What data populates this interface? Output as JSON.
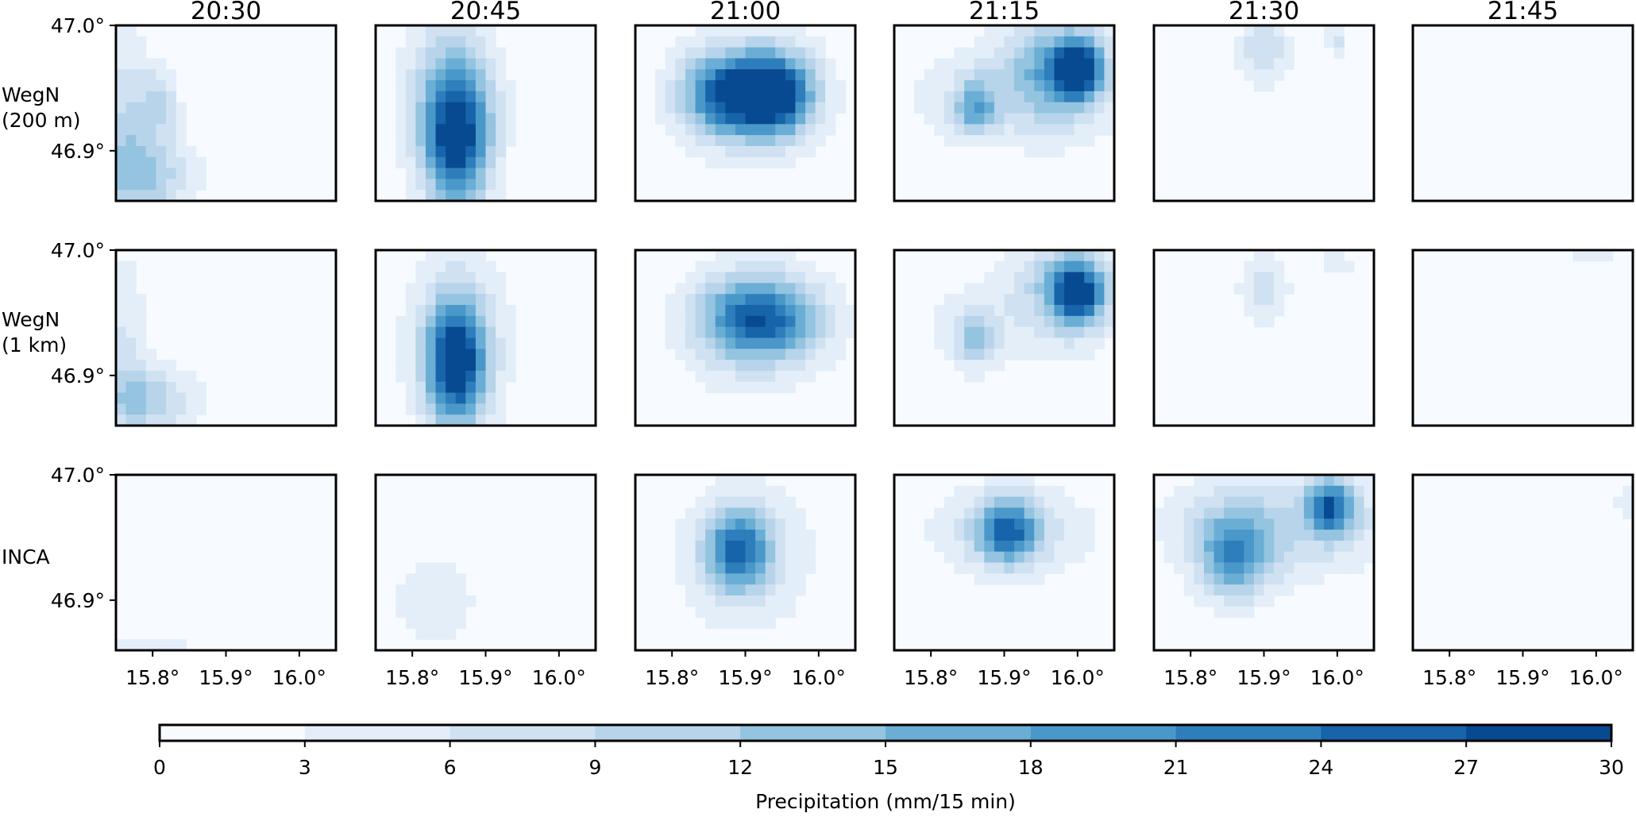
{
  "chart_data": {
    "type": "heatmap",
    "columns": [
      "20:30",
      "20:45",
      "21:00",
      "21:15",
      "21:30",
      "21:45"
    ],
    "rows": [
      "WegN\n(200 m)",
      "WegN\n(1 km)",
      "INCA"
    ],
    "xticks": [
      "15.8°",
      "15.9°",
      "16.0°"
    ],
    "xtick_values": [
      15.8,
      15.9,
      16.0
    ],
    "yticks": [
      "47.0°",
      "46.9°"
    ],
    "ytick_values": [
      47.0,
      46.9
    ],
    "xlim": [
      15.75,
      16.05
    ],
    "ylim": [
      46.86,
      47.0
    ],
    "colorbar": {
      "label": "Precipitation (mm/15 min)",
      "ticks": [
        "0",
        "3",
        "6",
        "9",
        "12",
        "15",
        "18",
        "21",
        "24",
        "27",
        "30"
      ],
      "levels": [
        0,
        3,
        6,
        9,
        12,
        15,
        18,
        21,
        24,
        27,
        30
      ],
      "colors": [
        "#f7fbff",
        "#e3eef9",
        "#d0e1f2",
        "#b7d4ea",
        "#94c4df",
        "#6aaed6",
        "#4a98c9",
        "#2e7ebc",
        "#1764ab",
        "#084a91",
        "#08306b"
      ],
      "cmap": "Blues"
    },
    "cells": [
      [
        {
          "blobs": [
            {
              "lon": 15.79,
              "lat": 46.88,
              "peak": 11,
              "sx": 0.05,
              "sy": 0.025
            },
            {
              "lon": 15.76,
              "lat": 46.93,
              "peak": 8,
              "sx": 0.03,
              "sy": 0.05
            },
            {
              "lon": 15.81,
              "lat": 46.94,
              "peak": 8,
              "sx": 0.018,
              "sy": 0.018
            }
          ]
        },
        {
          "blobs": [
            {
              "lon": 15.86,
              "lat": 46.91,
              "peak": 27,
              "sx": 0.032,
              "sy": 0.04
            },
            {
              "lon": 15.85,
              "lat": 46.95,
              "peak": 8,
              "sx": 0.05,
              "sy": 0.05
            }
          ]
        },
        {
          "blobs": [
            {
              "lon": 15.88,
              "lat": 46.945,
              "peak": 24,
              "sx": 0.045,
              "sy": 0.022
            },
            {
              "lon": 15.945,
              "lat": 46.945,
              "peak": 23,
              "sx": 0.035,
              "sy": 0.022
            },
            {
              "lon": 15.91,
              "lat": 46.945,
              "peak": 6,
              "sx": 0.08,
              "sy": 0.045
            }
          ]
        },
        {
          "blobs": [
            {
              "lon": 15.97,
              "lat": 46.965,
              "peak": 14,
              "sx": 0.05,
              "sy": 0.03
            },
            {
              "lon": 16.0,
              "lat": 46.965,
              "peak": 27,
              "sx": 0.022,
              "sy": 0.015
            },
            {
              "lon": 15.86,
              "lat": 46.935,
              "peak": 14,
              "sx": 0.02,
              "sy": 0.015
            },
            {
              "lon": 15.9,
              "lat": 46.945,
              "peak": 5,
              "sx": 0.12,
              "sy": 0.035
            }
          ]
        },
        {
          "blobs": [
            {
              "lon": 15.9,
              "lat": 46.98,
              "peak": 9,
              "sx": 0.025,
              "sy": 0.02
            },
            {
              "lon": 16.0,
              "lat": 46.99,
              "peak": 7,
              "sx": 0.012,
              "sy": 0.01
            }
          ]
        },
        {
          "blobs": [
            {
              "lon": 16.03,
              "lat": 47.005,
              "peak": 4,
              "sx": 0.04,
              "sy": 0.01
            }
          ]
        }
      ],
      [
        {
          "blobs": [
            {
              "lon": 15.79,
              "lat": 46.88,
              "peak": 11,
              "sx": 0.05,
              "sy": 0.02
            },
            {
              "lon": 15.76,
              "lat": 46.935,
              "peak": 6,
              "sx": 0.025,
              "sy": 0.05
            }
          ]
        },
        {
          "blobs": [
            {
              "lon": 15.86,
              "lat": 46.91,
              "peak": 28,
              "sx": 0.028,
              "sy": 0.035
            },
            {
              "lon": 15.86,
              "lat": 46.93,
              "peak": 6,
              "sx": 0.06,
              "sy": 0.06
            }
          ]
        },
        {
          "blobs": [
            {
              "lon": 15.92,
              "lat": 46.945,
              "peak": 22,
              "sx": 0.055,
              "sy": 0.022
            },
            {
              "lon": 15.91,
              "lat": 46.94,
              "peak": 6,
              "sx": 0.08,
              "sy": 0.045
            }
          ]
        },
        {
          "blobs": [
            {
              "lon": 16.0,
              "lat": 46.965,
              "peak": 24,
              "sx": 0.025,
              "sy": 0.018
            },
            {
              "lon": 15.98,
              "lat": 46.975,
              "peak": 9,
              "sx": 0.05,
              "sy": 0.025
            },
            {
              "lon": 15.86,
              "lat": 46.93,
              "peak": 10,
              "sx": 0.02,
              "sy": 0.015
            },
            {
              "lon": 15.9,
              "lat": 46.94,
              "peak": 4,
              "sx": 0.12,
              "sy": 0.035
            }
          ]
        },
        {
          "blobs": [
            {
              "lon": 15.9,
              "lat": 46.97,
              "peak": 8,
              "sx": 0.025,
              "sy": 0.02
            },
            {
              "lon": 16.0,
              "lat": 46.99,
              "peak": 5,
              "sx": 0.02,
              "sy": 0.008
            }
          ]
        },
        {
          "blobs": [
            {
              "lon": 16.0,
              "lat": 46.995,
              "peak": 3.5,
              "sx": 0.05,
              "sy": 0.008
            }
          ]
        }
      ],
      [
        {
          "blobs": [
            {
              "lon": 15.8,
              "lat": 46.865,
              "peak": 5,
              "sx": 0.05,
              "sy": 0.008
            }
          ]
        },
        {
          "blobs": [
            {
              "lon": 15.83,
              "lat": 46.9,
              "peak": 5,
              "sx": 0.05,
              "sy": 0.03
            }
          ]
        },
        {
          "blobs": [
            {
              "lon": 15.89,
              "lat": 46.94,
              "peak": 20,
              "sx": 0.03,
              "sy": 0.022
            },
            {
              "lon": 15.9,
              "lat": 46.935,
              "peak": 7,
              "sx": 0.07,
              "sy": 0.045
            }
          ]
        },
        {
          "blobs": [
            {
              "lon": 15.905,
              "lat": 46.955,
              "peak": 21,
              "sx": 0.03,
              "sy": 0.018
            },
            {
              "lon": 15.91,
              "lat": 46.955,
              "peak": 6,
              "sx": 0.1,
              "sy": 0.03
            }
          ]
        },
        {
          "blobs": [
            {
              "lon": 15.99,
              "lat": 46.975,
              "peak": 21,
              "sx": 0.022,
              "sy": 0.015
            },
            {
              "lon": 15.86,
              "lat": 46.935,
              "peak": 17,
              "sx": 0.035,
              "sy": 0.025
            },
            {
              "lon": 15.93,
              "lat": 46.96,
              "peak": 9,
              "sx": 0.12,
              "sy": 0.03
            }
          ]
        },
        {
          "blobs": [
            {
              "lon": 16.04,
              "lat": 46.98,
              "peak": 3.5,
              "sx": 0.02,
              "sy": 0.02
            }
          ]
        }
      ]
    ]
  }
}
